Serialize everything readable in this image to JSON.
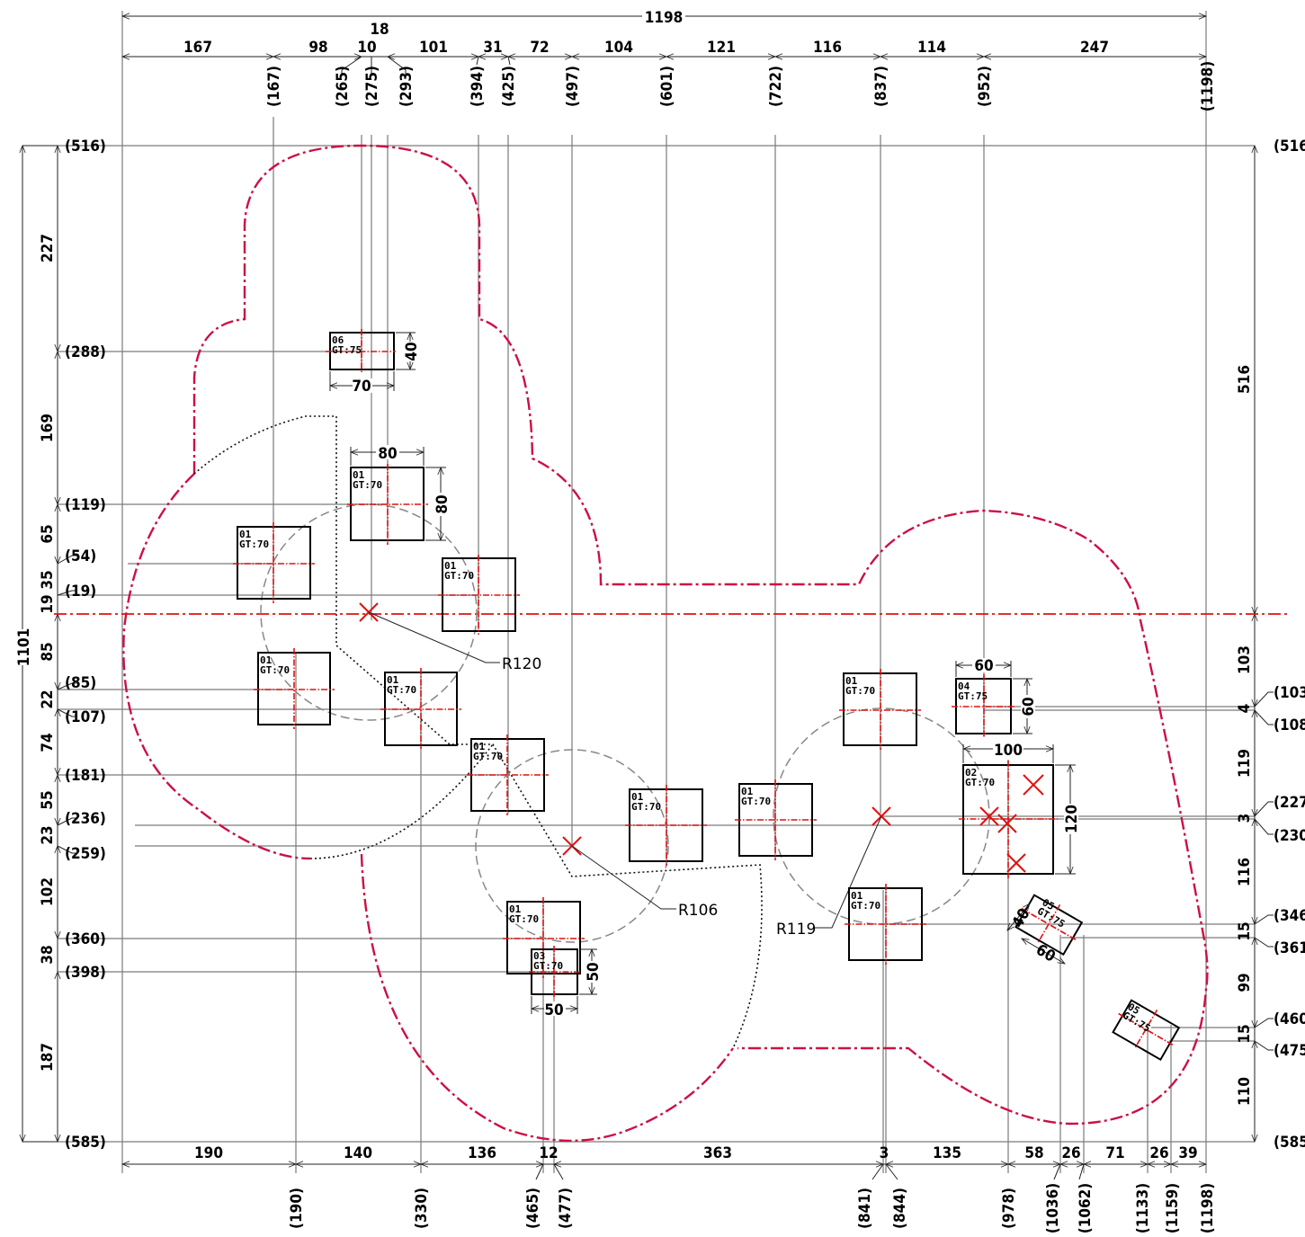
{
  "top_dims": {
    "overall": "1198",
    "chain": [
      {
        "text": "167",
        "id": "d-167"
      },
      {
        "text": "98",
        "id": "d-98"
      },
      {
        "text": "10",
        "id": "d-10"
      },
      {
        "text": "18",
        "id": "d-18"
      },
      {
        "text": "101",
        "id": "d-101"
      },
      {
        "text": "31",
        "id": "d-31"
      },
      {
        "text": "72",
        "id": "d-72"
      },
      {
        "text": "104",
        "id": "d-104"
      },
      {
        "text": "121",
        "id": "d-121"
      },
      {
        "text": "116",
        "id": "d-116"
      },
      {
        "text": "114",
        "id": "d-114"
      },
      {
        "text": "247",
        "id": "d-247"
      }
    ],
    "ordinates": [
      "(167)",
      "(265)",
      "(275)",
      "(293)",
      "(394)",
      "(425)",
      "(497)",
      "(601)",
      "(722)",
      "(837)",
      "(952)",
      "(1198)"
    ]
  },
  "bottom_dims": {
    "chain": [
      "190",
      "140",
      "136",
      "12",
      "363",
      "3",
      "135",
      "58",
      "26",
      "71",
      "26",
      "39"
    ],
    "ordinates": [
      "(190)",
      "(330)",
      "(465)",
      "(477)",
      "(841)",
      "(844)",
      "(978)",
      "(1036)",
      "(1062)",
      "(1133)",
      "(1159)",
      "(1198)"
    ]
  },
  "left_dims": {
    "overall": "1101",
    "chain": [
      "227",
      "169",
      "65",
      "35",
      "19",
      "85",
      "22",
      "74",
      "55",
      "23",
      "102",
      "38",
      "187"
    ],
    "ordinates": [
      "(516)",
      "(288)",
      "(119)",
      "(54)",
      "(19)",
      "(85)",
      "(107)",
      "(181)",
      "(236)",
      "(259)",
      "(360)",
      "(398)",
      "(585)"
    ]
  },
  "right_dims": {
    "chain": [
      "516",
      "103",
      "4",
      "119",
      "3",
      "116",
      "15",
      "99",
      "15",
      "110"
    ],
    "ordinates": [
      "(516)",
      "(103",
      "(108",
      "(227",
      "(230",
      "(346",
      "(361",
      "(460",
      "(475",
      "(585)"
    ]
  },
  "parts": [
    {
      "code": "06",
      "gt": "GT:75",
      "w": "70",
      "h": "40"
    },
    {
      "code": "01",
      "gt": "GT:70",
      "w": "80",
      "h": "80"
    },
    {
      "code": "01",
      "gt": "GT:70"
    },
    {
      "code": "01",
      "gt": "GT:70"
    },
    {
      "code": "01",
      "gt": "GT:70"
    },
    {
      "code": "01",
      "gt": "GT:70"
    },
    {
      "code": "01",
      "gt": "GT:70"
    },
    {
      "code": "01",
      "gt": "GT:70"
    },
    {
      "code": "01",
      "gt": "GT:70"
    },
    {
      "code": "01",
      "gt": "GT:70"
    },
    {
      "code": "03",
      "gt": "GT:70",
      "w": "50",
      "h": "50"
    },
    {
      "code": "01",
      "gt": "GT:70"
    },
    {
      "code": "01",
      "gt": "GT:70"
    },
    {
      "code": "04",
      "gt": "GT:75",
      "w": "60",
      "h": "60"
    },
    {
      "code": "02",
      "gt": "GT:70",
      "w": "100",
      "h": "120"
    },
    {
      "code": "05",
      "gt": "GT:75",
      "w": "60",
      "h": "40"
    },
    {
      "code": "05",
      "gt": "GT:75"
    }
  ],
  "radii": [
    "R120",
    "R106",
    "R119"
  ],
  "colors": {
    "outline": "#cc1044",
    "centerline": "#e01010",
    "guide": "#7a7a7a"
  }
}
